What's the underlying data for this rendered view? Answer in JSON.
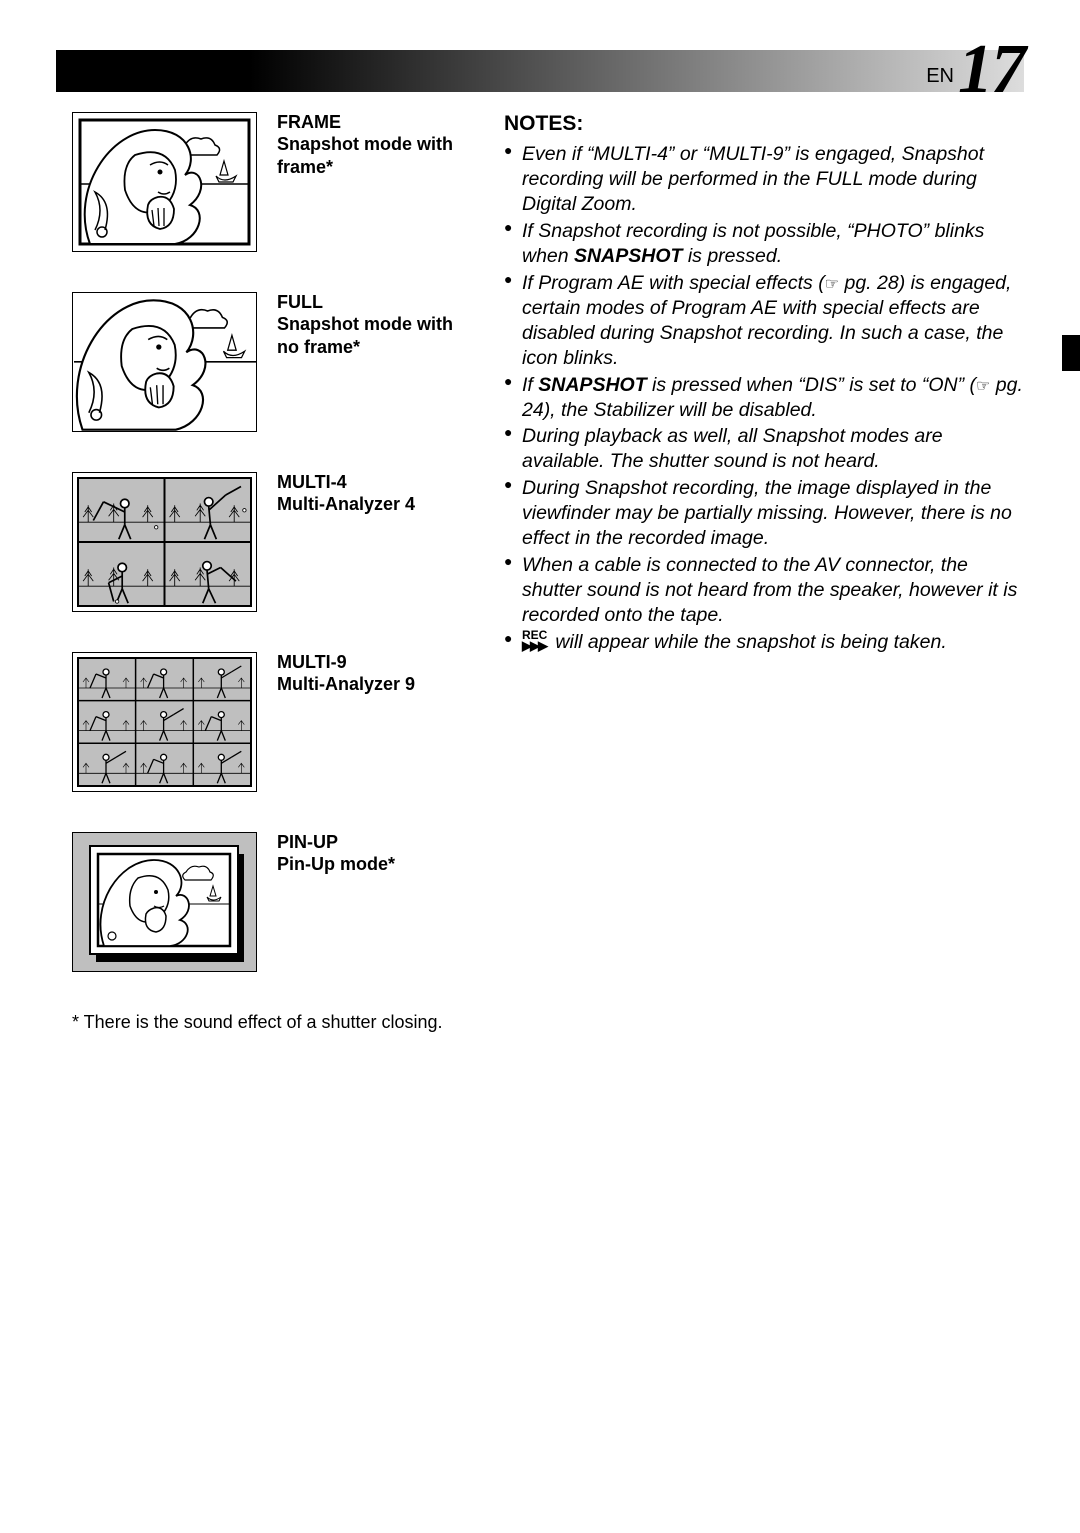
{
  "header": {
    "lang": "EN",
    "page_number": "17"
  },
  "modes": [
    {
      "title": "FRAME",
      "sub": "Snapshot mode with frame*",
      "thumb": "woman_frame"
    },
    {
      "title": "FULL",
      "sub": "Snapshot mode with no frame*",
      "thumb": "woman_full"
    },
    {
      "title": "MULTI-4",
      "sub": "Multi-Analyzer 4",
      "thumb": "multi4"
    },
    {
      "title": "MULTI-9",
      "sub": "Multi-Analyzer 9",
      "thumb": "multi9"
    },
    {
      "title": "PIN-UP",
      "sub": "Pin-Up mode*",
      "thumb": "pinup"
    }
  ],
  "footnote": "* There is the sound effect of a shutter closing.",
  "notes_heading": "NOTES:",
  "notes": [
    "Even if \"MULTI-4\" or \"MULTI-9\" is engaged, Snapshot recording will be performed in the FULL mode during Digital Zoom.",
    "If Snapshot recording is not possible, \"PHOTO\" blinks when <b>SNAPSHOT</b> is pressed.",
    "If Program AE with special effects (<hand> pg. 28) is engaged, certain modes of Program AE with special effects are disabled during Snapshot recording. In such a case, the icon blinks.",
    "If <b>SNAPSHOT</b> is pressed when \"DIS\" is set to \"ON\" (<hand> pg. 24), the Stabilizer will be disabled.",
    "During playback as well, all Snapshot modes are available. The shutter sound is not heard.",
    "During Snapshot recording, the image displayed in the viewfinder may be partially missing. However, there is no effect in the recorded image.",
    "When a cable is connected to the AV connector, the shutter sound is not heard from the speaker, however it is recorded onto the tape.",
    "<rec> will appear while the snapshot is being taken."
  ],
  "colors": {
    "black": "#000000",
    "white": "#ffffff",
    "gray_light": "#dddddd",
    "gray_fill": "#b8b8b8",
    "gray_mid": "#bfbfbf"
  }
}
